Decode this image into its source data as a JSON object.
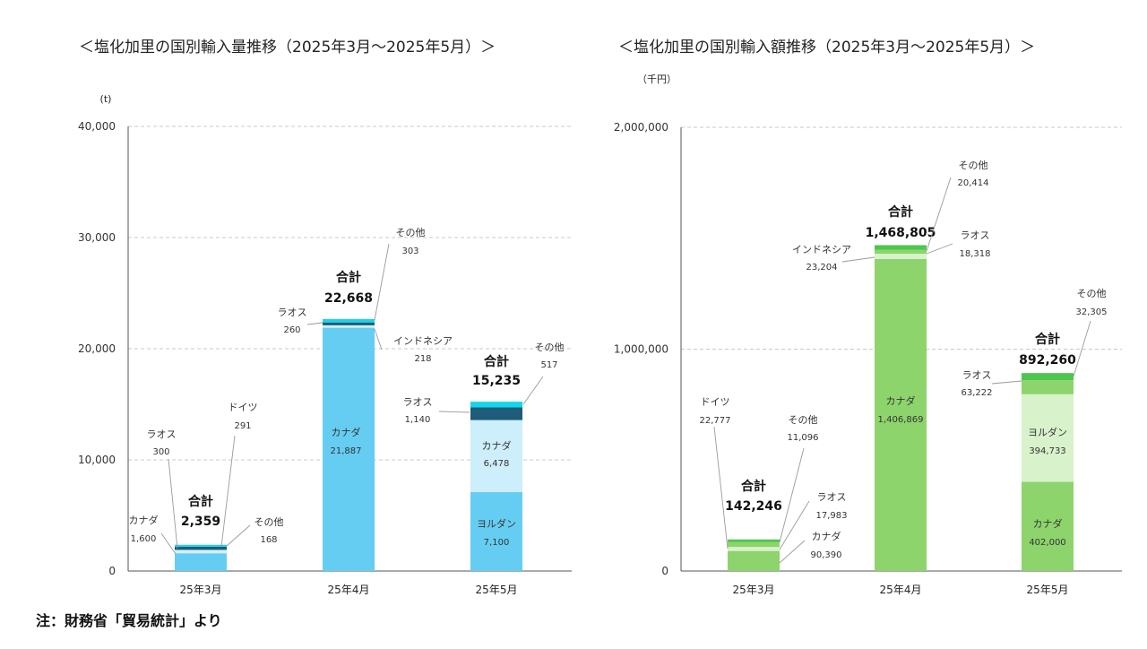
{
  "footnote": "注：財務省「貿易統計」より",
  "chart_data": [
    {
      "type": "bar",
      "stacked": true,
      "title": "＜塩化加里の国別輸入量推移（2025年3月～2025年5月）＞",
      "unit": "(t)",
      "ylim": [
        0,
        40000
      ],
      "yticks": [
        "0",
        "10,000",
        "20,000",
        "30,000",
        "40,000"
      ],
      "grid": true,
      "categories": [
        "25年3月",
        "25年4月",
        "25年5月"
      ],
      "bars": [
        {
          "category": "25年3月",
          "total_label": "合計",
          "total": 2359,
          "total_text": "2,359",
          "segments": [
            {
              "name": "カナダ",
              "value": 1600,
              "value_text": "1,600",
              "color": "#66cdf2"
            },
            {
              "name": "ラオス",
              "value": 300,
              "value_text": "300",
              "color": "#d2f0fb"
            },
            {
              "name": "ドイツ",
              "value": 291,
              "value_text": "291",
              "color": "#1f5c7a"
            },
            {
              "name": "その他",
              "value": 168,
              "value_text": "168",
              "color": "#16d6ea"
            }
          ]
        },
        {
          "category": "25年4月",
          "total_label": "合計",
          "total": 22668,
          "total_text": "22,668",
          "segments": [
            {
              "name": "カナダ",
              "value": 21887,
              "value_text": "21,887",
              "color": "#66cdf2"
            },
            {
              "name": "インドネシア",
              "value": 218,
              "value_text": "218",
              "color": "#d2f0fb"
            },
            {
              "name": "ラオス",
              "value": 260,
              "value_text": "260",
              "color": "#1f5c7a"
            },
            {
              "name": "その他",
              "value": 303,
              "value_text": "303",
              "color": "#16d6ea"
            }
          ]
        },
        {
          "category": "25年5月",
          "total_label": "合計",
          "total": 15235,
          "total_text": "15,235",
          "segments": [
            {
              "name": "ヨルダン",
              "value": 7100,
              "value_text": "7,100",
              "color": "#66cdf2"
            },
            {
              "name": "カナダ",
              "value": 6478,
              "value_text": "6,478",
              "color": "#cdeefb"
            },
            {
              "name": "ラオス",
              "value": 1140,
              "value_text": "1,140",
              "color": "#1f5c7a"
            },
            {
              "name": "その他",
              "value": 517,
              "value_text": "517",
              "color": "#16d6ea"
            }
          ]
        }
      ]
    },
    {
      "type": "bar",
      "stacked": true,
      "title": "＜塩化加里の国別輸入額推移（2025年3月～2025年5月）＞",
      "unit": "（千円）",
      "ylim": [
        0,
        2000000
      ],
      "yticks": [
        "0",
        "1,000,000",
        "2,000,000"
      ],
      "grid": true,
      "categories": [
        "25年3月",
        "25年4月",
        "25年5月"
      ],
      "bars": [
        {
          "category": "25年3月",
          "total_label": "合計",
          "total": 142246,
          "total_text": "142,246",
          "segments": [
            {
              "name": "カナダ",
              "value": 90390,
              "value_text": "90,390",
              "color": "#8dd46c"
            },
            {
              "name": "ラオス",
              "value": 17983,
              "value_text": "17,983",
              "color": "#d8f2cb"
            },
            {
              "name": "ドイツ",
              "value": 22777,
              "value_text": "22,777",
              "color": "#8dd46c"
            },
            {
              "name": "その他",
              "value": 11096,
              "value_text": "11,096",
              "color": "#4cc64c"
            }
          ]
        },
        {
          "category": "25年4月",
          "total_label": "合計",
          "total": 1468805,
          "total_text": "1,468,805",
          "segments": [
            {
              "name": "カナダ",
              "value": 1406869,
              "value_text": "1,406,869",
              "color": "#8dd46c"
            },
            {
              "name": "インドネシア",
              "value": 23204,
              "value_text": "23,204",
              "color": "#d8f2cb"
            },
            {
              "name": "ラオス",
              "value": 18318,
              "value_text": "18,318",
              "color": "#8dd46c"
            },
            {
              "name": "その他",
              "value": 20414,
              "value_text": "20,414",
              "color": "#4cc64c"
            }
          ]
        },
        {
          "category": "25年5月",
          "total_label": "合計",
          "total": 892260,
          "total_text": "892,260",
          "segments": [
            {
              "name": "カナダ",
              "value": 402000,
              "value_text": "402,000",
              "color": "#8dd46c"
            },
            {
              "name": "ヨルダン",
              "value": 394733,
              "value_text": "394,733",
              "color": "#d8f2cb"
            },
            {
              "name": "ラオス",
              "value": 63222,
              "value_text": "63,222",
              "color": "#8dd46c"
            },
            {
              "name": "その他",
              "value": 32305,
              "value_text": "32,305",
              "color": "#4cc64c"
            }
          ]
        }
      ]
    }
  ]
}
